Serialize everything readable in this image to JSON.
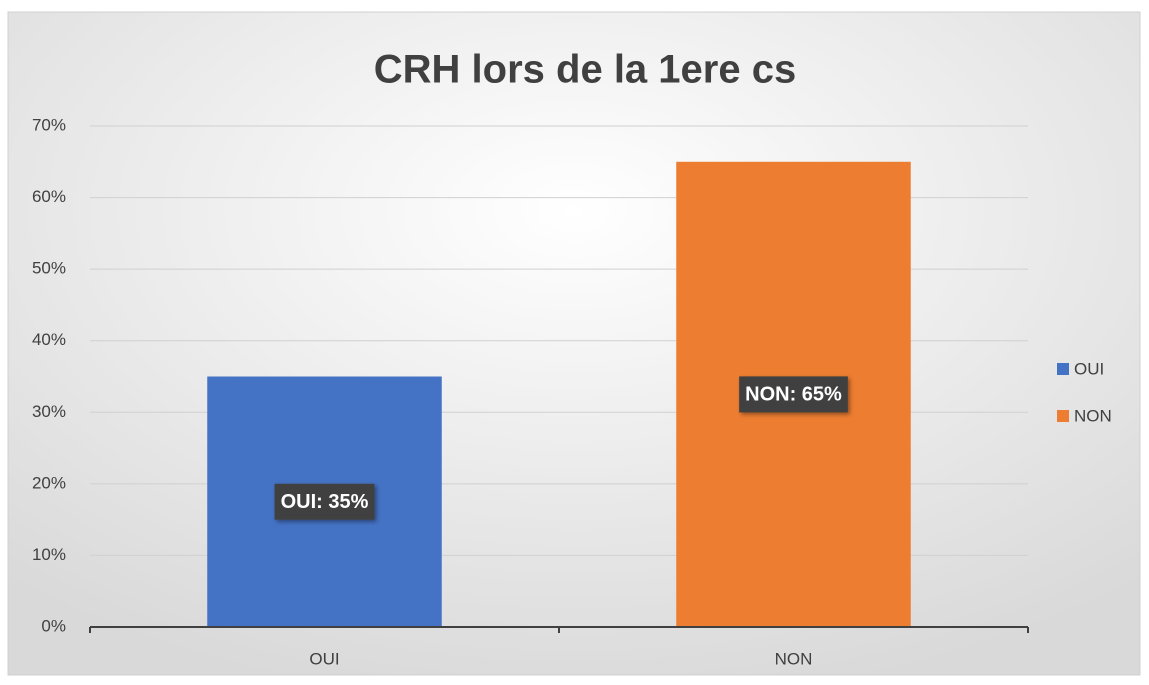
{
  "chart_data": {
    "type": "bar",
    "title": "CRH lors de la 1ere cs",
    "categories": [
      "OUI",
      "NON"
    ],
    "values": [
      35,
      65
    ],
    "value_labels": [
      "OUI: 35%",
      "NON: 65%"
    ],
    "colors": [
      "#4472c4",
      "#ed7d31"
    ],
    "ylim": [
      0,
      70
    ],
    "yticks": [
      {
        "value": 0,
        "label": "0%"
      },
      {
        "value": 10,
        "label": "10%"
      },
      {
        "value": 20,
        "label": "20%"
      },
      {
        "value": 30,
        "label": "30%"
      },
      {
        "value": 40,
        "label": "40%"
      },
      {
        "value": 50,
        "label": "50%"
      },
      {
        "value": 60,
        "label": "60%"
      },
      {
        "value": 70,
        "label": "70%"
      }
    ],
    "grid": true,
    "legend": "right"
  }
}
